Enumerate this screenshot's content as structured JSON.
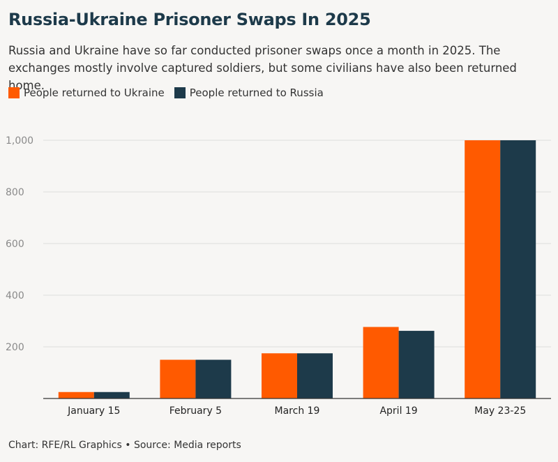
{
  "title": "Russia-Ukraine Prisoner Swaps In 2025",
  "subtitle": "Russia and Ukraine have so far conducted prisoner swaps once a month in 2025. The exchanges mostly involve captured soldiers, but some civilians have also been returned home.",
  "footer": "Chart: RFE/RL Graphics • Source: Media reports",
  "colors": {
    "ukraine": "#ff5a00",
    "russia": "#1d3a4a",
    "grid": "#dddddd",
    "axis": "#333333",
    "tick_text": "#8a8a8a"
  },
  "chart_data": {
    "type": "bar",
    "categories": [
      "January 15",
      "February 5",
      "March 19",
      "April 19",
      "May 23-25"
    ],
    "series": [
      {
        "name": "People returned to Ukraine",
        "values": [
          25,
          150,
          175,
          277,
          1000
        ]
      },
      {
        "name": "People returned to Russia",
        "values": [
          25,
          150,
          175,
          262,
          1000
        ]
      }
    ],
    "ylim": [
      0,
      1000
    ],
    "yticks": [
      "200",
      "400",
      "600",
      "800",
      "1,000"
    ],
    "grid": true,
    "legend": "top-left"
  }
}
